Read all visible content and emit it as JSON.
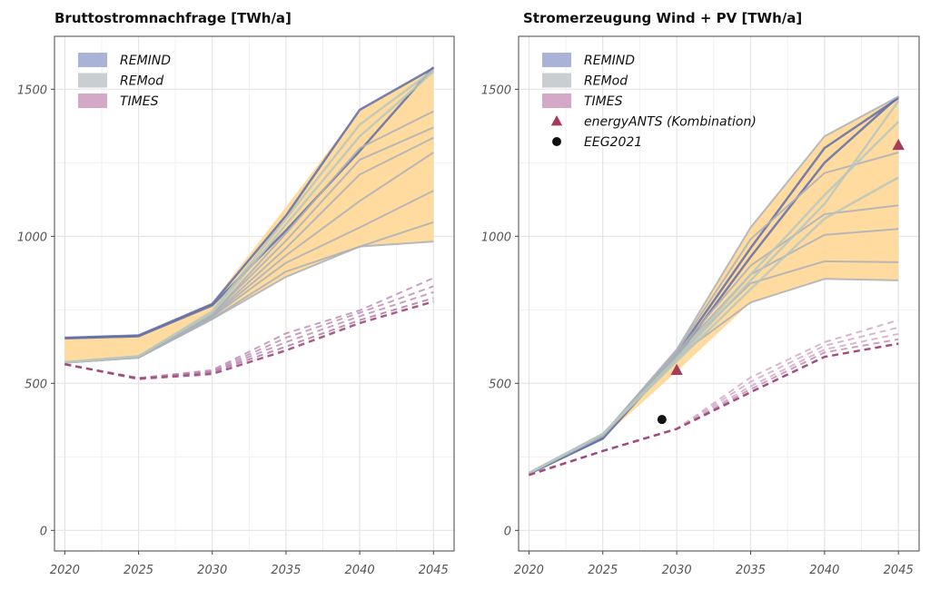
{
  "chart_data": [
    {
      "type": "line",
      "title": "Bruttostromnachfrage [TWh/a]",
      "x": [
        2020,
        2025,
        2030,
        2035,
        2040,
        2045
      ],
      "xlim": [
        2019.3,
        2046.4
      ],
      "ylim": [
        -70,
        1680
      ],
      "yticks": [
        0,
        500,
        1000,
        1500
      ],
      "grid": true,
      "legend_position": "top-left",
      "legend": [
        {
          "label": "REMIND",
          "marker": "rect",
          "color": "#a9b3d8"
        },
        {
          "label": "REMod",
          "marker": "rect",
          "color": "#c8ced2"
        },
        {
          "label": "TIMES",
          "marker": "rect",
          "color": "#d4a9c8"
        }
      ],
      "band": {
        "color": "#ffd99a",
        "upper": [
          656,
          665,
          775,
          1100,
          1430,
          1575
        ],
        "lower": [
          570,
          587,
          718,
          862,
          965,
          982
        ]
      },
      "series": [
        {
          "model": "REMIND",
          "color": "#5f6da8",
          "width": 2.5,
          "values": [
            655,
            663,
            770,
            1070,
            1430,
            1572
          ]
        },
        {
          "model": "REMIND",
          "color": "#5f6da8",
          "width": 2.5,
          "values": [
            653,
            660,
            765,
            1020,
            1290,
            1575
          ]
        },
        {
          "model": "REMod",
          "color": "#aab0b8",
          "width": 2,
          "values": [
            572,
            590,
            733,
            1010,
            1300,
            1425
          ]
        },
        {
          "model": "REMod",
          "color": "#aab0b8",
          "width": 2,
          "values": [
            572,
            590,
            735,
            985,
            1260,
            1370
          ]
        },
        {
          "model": "REMod",
          "color": "#aab0b8",
          "width": 2,
          "values": [
            572,
            590,
            730,
            960,
            1210,
            1335
          ]
        },
        {
          "model": "REMod",
          "color": "#aab0b8",
          "width": 2,
          "values": [
            570,
            588,
            728,
            935,
            1120,
            1285
          ]
        },
        {
          "model": "REMod",
          "color": "#aab0b8",
          "width": 2,
          "values": [
            570,
            588,
            726,
            910,
            1030,
            1155
          ]
        },
        {
          "model": "REMod",
          "color": "#aab0b8",
          "width": 2,
          "values": [
            570,
            587,
            720,
            880,
            965,
            1048
          ]
        },
        {
          "model": "REMod",
          "color": "#aab0b8",
          "width": 2,
          "values": [
            570,
            587,
            718,
            862,
            965,
            982
          ]
        },
        {
          "model": "REMod",
          "color": "#b7c7bd",
          "width": 2.5,
          "values": [
            572,
            592,
            740,
            1040,
            1340,
            1560
          ]
        },
        {
          "model": "REMod",
          "color": "#b7c7bd",
          "width": 2.5,
          "values": [
            572,
            592,
            745,
            1060,
            1380,
            1565
          ]
        },
        {
          "model": "TIMES",
          "color": "#bf8fb5",
          "width": 2,
          "dashed": true,
          "values": [
            565,
            518,
            545,
            670,
            748,
            858
          ]
        },
        {
          "model": "TIMES",
          "color": "#bf8fb5",
          "width": 2,
          "dashed": true,
          "values": [
            565,
            518,
            542,
            655,
            740,
            830
          ]
        },
        {
          "model": "TIMES",
          "color": "#bf8fb5",
          "width": 2,
          "dashed": true,
          "values": [
            565,
            518,
            540,
            640,
            728,
            810
          ]
        },
        {
          "model": "TIMES",
          "color": "#b07aa5",
          "width": 2,
          "dashed": true,
          "values": [
            565,
            518,
            538,
            625,
            715,
            790
          ]
        },
        {
          "model": "TIMES",
          "color": "#9b3e74",
          "width": 2.5,
          "dashed": true,
          "values": [
            565,
            515,
            532,
            612,
            705,
            778
          ]
        }
      ]
    },
    {
      "type": "line",
      "title": "Stromerzeugung Wind + PV [TWh/a]",
      "x": [
        2020,
        2025,
        2030,
        2035,
        2040,
        2045
      ],
      "xlim": [
        2019.3,
        2046.4
      ],
      "ylim": [
        -70,
        1680
      ],
      "yticks": [
        0,
        500,
        1000,
        1500
      ],
      "grid": true,
      "legend_position": "top-left",
      "legend": [
        {
          "label": "REMIND",
          "marker": "rect",
          "color": "#a9b3d8"
        },
        {
          "label": "REMod",
          "marker": "rect",
          "color": "#c8ced2"
        },
        {
          "label": "TIMES",
          "marker": "rect",
          "color": "#d4a9c8"
        },
        {
          "label": "energyANTS (Kombination)",
          "marker": "triangle",
          "color": "#a83a5a"
        },
        {
          "label": "EEG2021",
          "marker": "circle",
          "color": "#111111"
        }
      ],
      "band": {
        "color": "#ffd99a",
        "upper": [
          195,
          330,
          615,
          1030,
          1340,
          1475
        ],
        "lower": [
          190,
          315,
          540,
          775,
          855,
          850
        ]
      },
      "series": [
        {
          "model": "REMIND",
          "color": "#5f6da8",
          "width": 2.5,
          "values": [
            192,
            315,
            600,
            960,
            1300,
            1470
          ]
        },
        {
          "model": "REMIND",
          "color": "#5f6da8",
          "width": 2.5,
          "values": [
            192,
            312,
            590,
            930,
            1250,
            1475
          ]
        },
        {
          "model": "REMod",
          "color": "#aab0b8",
          "width": 2,
          "values": [
            195,
            325,
            615,
            1030,
            1340,
            1475
          ]
        },
        {
          "model": "REMod",
          "color": "#aab0b8",
          "width": 2,
          "values": [
            195,
            325,
            610,
            990,
            1215,
            1285
          ]
        },
        {
          "model": "REMod",
          "color": "#aab0b8",
          "width": 2,
          "values": [
            195,
            325,
            605,
            900,
            1075,
            1105
          ]
        },
        {
          "model": "REMod",
          "color": "#aab0b8",
          "width": 2,
          "values": [
            195,
            325,
            600,
            870,
            1005,
            1025
          ]
        },
        {
          "model": "REMod",
          "color": "#aab0b8",
          "width": 2,
          "values": [
            193,
            322,
            595,
            840,
            915,
            912
          ]
        },
        {
          "model": "REMod",
          "color": "#aab0b8",
          "width": 2,
          "values": [
            193,
            320,
            590,
            775,
            855,
            850
          ]
        },
        {
          "model": "REMod",
          "color": "#b7c7bd",
          "width": 2.5,
          "values": [
            195,
            328,
            585,
            870,
            1140,
            1390
          ]
        },
        {
          "model": "REMod",
          "color": "#b7c7bd",
          "width": 2.5,
          "values": [
            195,
            328,
            580,
            850,
            1110,
            1460
          ]
        },
        {
          "model": "REMod",
          "color": "#b7c7bd",
          "width": 2.5,
          "values": [
            195,
            328,
            575,
            820,
            1060,
            1200
          ]
        },
        {
          "model": "TIMES",
          "color": "#d4a9c8",
          "width": 2,
          "dashed": true,
          "values": [
            190,
            270,
            345,
            520,
            640,
            715
          ]
        },
        {
          "model": "TIMES",
          "color": "#d4a9c8",
          "width": 2,
          "dashed": true,
          "values": [
            190,
            270,
            345,
            505,
            628,
            690
          ]
        },
        {
          "model": "TIMES",
          "color": "#d4a9c8",
          "width": 2,
          "dashed": true,
          "values": [
            190,
            270,
            345,
            490,
            615,
            668
          ]
        },
        {
          "model": "TIMES",
          "color": "#bf8fb5",
          "width": 2,
          "dashed": true,
          "values": [
            190,
            270,
            345,
            480,
            605,
            650
          ]
        },
        {
          "model": "TIMES",
          "color": "#bf8fb5",
          "width": 2,
          "dashed": true,
          "values": [
            190,
            270,
            345,
            470,
            590,
            635
          ]
        },
        {
          "model": "TIMES",
          "color": "#9b3e74",
          "width": 2.5,
          "dashed": true,
          "values": [
            188,
            270,
            345,
            470,
            590,
            635
          ]
        }
      ],
      "points": [
        {
          "label": "energyANTS (Kombination)",
          "marker": "triangle",
          "color": "#a83a5a",
          "x": 2030,
          "y": 545
        },
        {
          "label": "energyANTS (Kombination)",
          "marker": "triangle",
          "color": "#a83a5a",
          "x": 2045,
          "y": 1310
        },
        {
          "label": "EEG2021",
          "marker": "circle",
          "color": "#111111",
          "x": 2029,
          "y": 377
        }
      ]
    }
  ]
}
